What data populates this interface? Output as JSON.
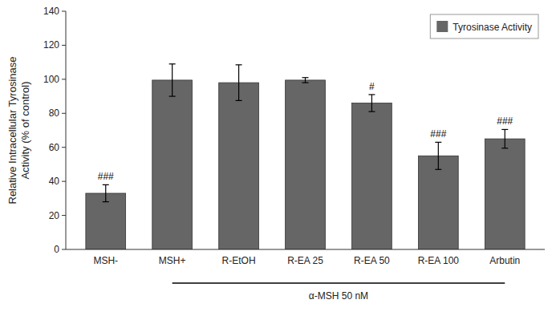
{
  "chart_data": {
    "type": "bar",
    "y_label": "Relative Intracellular Tyrosinase\nActivity (% of control)",
    "categories": [
      "MSH-",
      "MSH+",
      "R-EtOH",
      "R-EA 25",
      "R-EA 50",
      "R-EA 100",
      "Arbutin"
    ],
    "series": [
      {
        "name": "Tyrosinase Activity",
        "color": "#666666",
        "values": [
          33.0,
          99.5,
          98.0,
          99.5,
          86.0,
          55.0,
          65.0
        ],
        "errors": [
          5.0,
          9.5,
          10.5,
          1.5,
          5.0,
          8.0,
          5.5
        ],
        "significance": [
          "###",
          null,
          null,
          null,
          "#",
          "###",
          "###"
        ]
      }
    ],
    "annotations": [
      {
        "text": "α-MSH 50 nM",
        "from": "MSH+",
        "to": "Arbutin"
      }
    ],
    "ylim": [
      0,
      140
    ],
    "yticks": [
      0,
      20,
      40,
      60,
      80,
      100,
      120,
      140
    ],
    "grid": false,
    "legend": "upper right"
  }
}
